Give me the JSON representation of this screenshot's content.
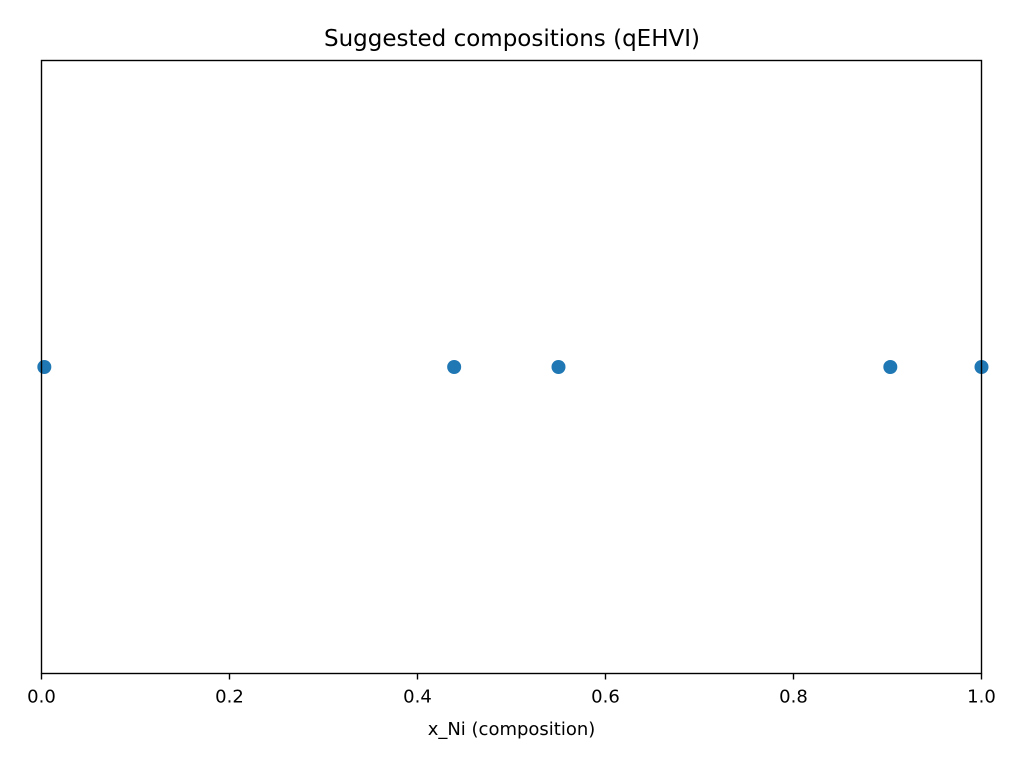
{
  "chart_data": {
    "type": "scatter",
    "title": "Suggested compositions (qEHVI)",
    "xlabel": "x_Ni (composition)",
    "ylabel": "",
    "xlim": [
      0.0,
      1.0
    ],
    "xticks": [
      "0.0",
      "0.2",
      "0.4",
      "0.6",
      "0.8",
      "1.0"
    ],
    "y_ticks_visible": false,
    "grid": false,
    "points": [
      {
        "x": 0.003,
        "y": 0
      },
      {
        "x": 0.439,
        "y": 0
      },
      {
        "x": 0.55,
        "y": 0
      },
      {
        "x": 0.903,
        "y": 0
      },
      {
        "x": 1.0,
        "y": 0
      }
    ],
    "marker_color": "#1f77b4"
  }
}
